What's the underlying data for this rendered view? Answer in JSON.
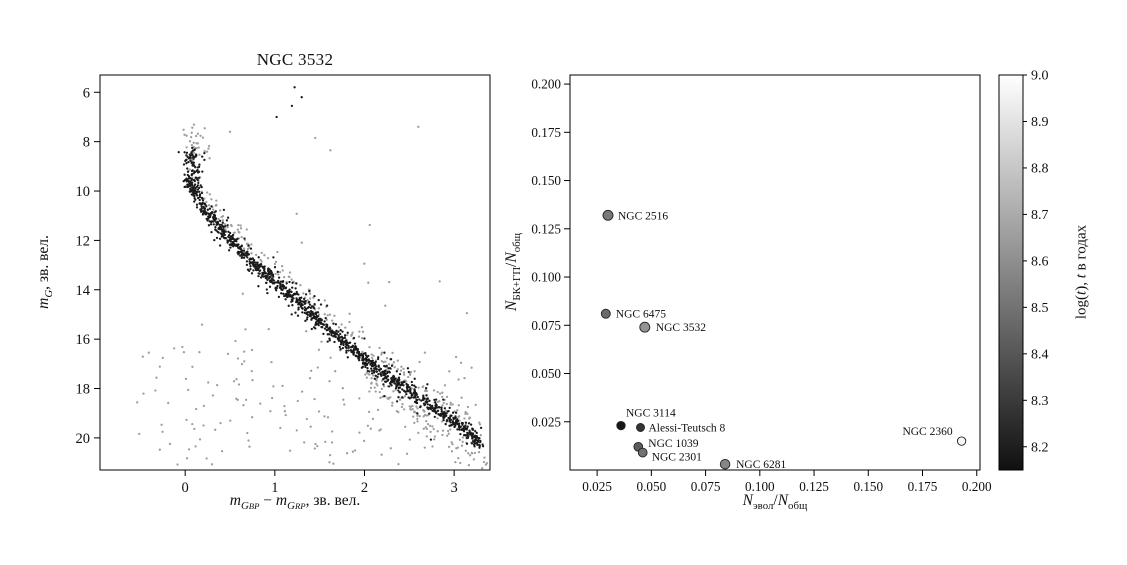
{
  "labels": {
    "cmd_x": {
      "m1": "m",
      "g1": "G",
      "bp": "BP",
      "sep": " − ",
      "m2": "m",
      "g2": "G",
      "rp": "RP",
      "rest": ", зв. вел."
    },
    "cmd_y": {
      "m": "m",
      "g": "G",
      "rest": ", зв. вел."
    },
    "ratio_x": {
      "n1": "N",
      "s1": "эвол",
      "slash": "/",
      "n2": "N",
      "s2": "общ"
    },
    "ratio_y": {
      "n1": "N",
      "s1": "БК+ГП",
      "slash": "/",
      "n2": "N",
      "s2": "общ"
    },
    "cbar": {
      "p1": "log(",
      "t1": "t",
      "p2": "), ",
      "t2": "t",
      "p3": " в годах"
    }
  },
  "chart_data": [
    {
      "id": "cmd",
      "type": "scatter",
      "title": "NGC 3532",
      "xlabel_text": "m_GBP − m_GRP, зв. вел.",
      "ylabel_text": "m_G, зв. вел.",
      "xlim": [
        -0.95,
        3.4
      ],
      "ylim": [
        5.3,
        21.3
      ],
      "y_axis_inverted": true,
      "xticks": [
        0,
        1,
        2,
        3
      ],
      "yticks": [
        6,
        8,
        10,
        12,
        14,
        16,
        18,
        20
      ],
      "colors": {
        "main": "#1a1a1a",
        "faint": "#9e9e9e"
      },
      "main_sequence_ridge": [
        [
          0,
          9.55
        ],
        [
          0.05,
          9.8
        ],
        [
          0.1,
          10.1
        ],
        [
          0.2,
          10.65
        ],
        [
          0.3,
          11.15
        ],
        [
          0.4,
          11.55
        ],
        [
          0.5,
          11.95
        ],
        [
          0.6,
          12.35
        ],
        [
          0.7,
          12.75
        ],
        [
          0.78,
          13.0
        ],
        [
          0.9,
          13.35
        ],
        [
          1.0,
          13.65
        ],
        [
          1.1,
          14.0
        ],
        [
          1.25,
          14.45
        ],
        [
          1.4,
          14.95
        ],
        [
          1.6,
          15.6
        ],
        [
          1.8,
          16.2
        ],
        [
          2.0,
          16.8
        ],
        [
          2.2,
          17.35
        ],
        [
          2.4,
          17.85
        ],
        [
          2.6,
          18.35
        ],
        [
          2.8,
          18.85
        ],
        [
          3.0,
          19.35
        ],
        [
          3.15,
          19.75
        ],
        [
          3.3,
          20.25
        ]
      ],
      "outliers_black": [
        [
          1.22,
          5.8
        ],
        [
          1.3,
          6.2
        ],
        [
          1.19,
          6.55
        ],
        [
          1.02,
          7.0
        ]
      ],
      "outliers_gray": [
        [
          1.45,
          7.85
        ],
        [
          2.6,
          7.4
        ],
        [
          1.62,
          8.35
        ],
        [
          0.5,
          7.6
        ]
      ],
      "gen": {
        "seed": 42,
        "main": {
          "n": 1000
        },
        "spread": {
          "n": 240
        },
        "binaries": {
          "n": 200
        },
        "faint_cloud": {
          "n": 130
        },
        "turnoff_black": {
          "n": 120,
          "c_mean": 0.09,
          "c_sd": 0.05,
          "m_min": 8.25,
          "m_max": 10.2
        },
        "turnoff_gray": {
          "n": 40,
          "c_mean": 0.11,
          "c_sd": 0.07,
          "m_min": 7.3,
          "m_max": 8.9
        },
        "field_gray": {
          "n": 150,
          "c_min": -0.55,
          "c_max": 3.3,
          "m_min": 16.3,
          "m_max": 21.1
        },
        "field_sparse": {
          "n": 22,
          "c_min": -0.5,
          "c_max": 3.2,
          "m_min": 10.5,
          "m_max": 16.3
        }
      }
    },
    {
      "id": "ratio",
      "type": "scatter",
      "xlabel_text": "N_эвол/N_общ",
      "ylabel_text": "N_БК+ГП/N_общ",
      "xlim": [
        0.0125,
        0.2015
      ],
      "ylim": [
        0,
        0.2047
      ],
      "xticks": [
        "0.025",
        "0.050",
        "0.075",
        "0.100",
        "0.125",
        "0.150",
        "0.175",
        "0.200"
      ],
      "yticks": [
        "0.025",
        "0.050",
        "0.075",
        "0.100",
        "0.125",
        "0.150",
        "0.175",
        "0.200"
      ],
      "clusters": [
        {
          "name": "NGC 2516",
          "x": 0.03,
          "y": 0.132,
          "logt": 8.52,
          "r": 5,
          "label_dx": 10,
          "label_dy": 4,
          "anchor": "start"
        },
        {
          "name": "NGC 6475",
          "x": 0.029,
          "y": 0.081,
          "logt": 8.47,
          "r": 4.5,
          "label_dx": 10,
          "label_dy": 4,
          "anchor": "start"
        },
        {
          "name": "NGC 3532",
          "x": 0.047,
          "y": 0.074,
          "logt": 8.62,
          "r": 5,
          "label_dx": 11,
          "label_dy": 4,
          "anchor": "start"
        },
        {
          "name": "NGC 3114",
          "x": 0.036,
          "y": 0.023,
          "logt": 8.18,
          "r": 4.2,
          "label_dx": 5,
          "label_dy": -9,
          "anchor": "start"
        },
        {
          "name": "Alessi-Teutsch 8",
          "x": 0.045,
          "y": 0.022,
          "logt": 8.28,
          "r": 4,
          "label_dx": 8,
          "label_dy": 4,
          "anchor": "start"
        },
        {
          "name": "NGC 1039",
          "x": 0.044,
          "y": 0.012,
          "logt": 8.42,
          "r": 4.4,
          "label_dx": 10,
          "label_dy": 0,
          "anchor": "start"
        },
        {
          "name": "NGC 2301",
          "x": 0.046,
          "y": 0.009,
          "logt": 8.5,
          "r": 4.4,
          "label_dx": 9,
          "label_dy": 8,
          "anchor": "start"
        },
        {
          "name": "NGC 6281",
          "x": 0.084,
          "y": 0.003,
          "logt": 8.57,
          "r": 4.8,
          "label_dx": 11,
          "label_dy": 4,
          "anchor": "start"
        },
        {
          "name": "NGC 2360",
          "x": 0.193,
          "y": 0.015,
          "logt": 8.97,
          "r": 4.2,
          "label_dx": -9,
          "label_dy": -6,
          "anchor": "end"
        }
      ],
      "colorbar": {
        "label_text": "log(t), t в годах",
        "range": [
          8.15,
          9.0
        ],
        "ticks": [
          "8.2",
          "8.3",
          "8.4",
          "8.5",
          "8.6",
          "8.7",
          "8.8",
          "8.9",
          "9.0"
        ],
        "top_color": "#ffffff",
        "bottom_color": "#101010"
      }
    }
  ]
}
